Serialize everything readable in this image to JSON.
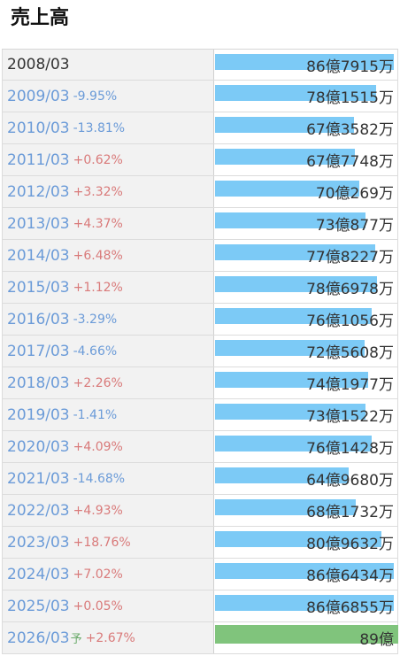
{
  "title": "売上高",
  "colors": {
    "bar_actual": "#7ccaf6",
    "bar_forecast": "#80c47c",
    "change_up": "#d97a7a",
    "change_down": "#6b9bd8"
  },
  "chart_data": {
    "type": "bar",
    "orientation": "horizontal",
    "title": "売上高",
    "categories": [
      "2008/03",
      "2009/03",
      "2010/03",
      "2011/03",
      "2012/03",
      "2013/03",
      "2014/03",
      "2015/03",
      "2016/03",
      "2017/03",
      "2018/03",
      "2019/03",
      "2020/03",
      "2021/03",
      "2022/03",
      "2023/03",
      "2024/03",
      "2025/03",
      "2026/03"
    ],
    "values": [
      8679150000,
      7815150000,
      6735820000,
      6777480000,
      7002690000,
      7308770000,
      7782270000,
      7869780000,
      7610560000,
      7256080000,
      7419770000,
      7315220000,
      7614280000,
      6496800000,
      6817320000,
      8096320000,
      8664340000,
      8668550000,
      8900000000
    ],
    "xlim": [
      0,
      8900000000
    ],
    "rows": [
      {
        "period": "2008/03",
        "predicted": "",
        "change": "",
        "direction": "",
        "value_label": "86億7915万",
        "value": 8679150000,
        "forecast": false
      },
      {
        "period": "2009/03",
        "predicted": "",
        "change": "-9.95%",
        "direction": "down",
        "value_label": "78億1515万",
        "value": 7815150000,
        "forecast": false
      },
      {
        "period": "2010/03",
        "predicted": "",
        "change": "-13.81%",
        "direction": "down",
        "value_label": "67億3582万",
        "value": 6735820000,
        "forecast": false
      },
      {
        "period": "2011/03",
        "predicted": "",
        "change": "+0.62%",
        "direction": "up",
        "value_label": "67億7748万",
        "value": 6777480000,
        "forecast": false
      },
      {
        "period": "2012/03",
        "predicted": "",
        "change": "+3.32%",
        "direction": "up",
        "value_label": "70億269万",
        "value": 7002690000,
        "forecast": false
      },
      {
        "period": "2013/03",
        "predicted": "",
        "change": "+4.37%",
        "direction": "up",
        "value_label": "73億877万",
        "value": 7308770000,
        "forecast": false
      },
      {
        "period": "2014/03",
        "predicted": "",
        "change": "+6.48%",
        "direction": "up",
        "value_label": "77億8227万",
        "value": 7782270000,
        "forecast": false
      },
      {
        "period": "2015/03",
        "predicted": "",
        "change": "+1.12%",
        "direction": "up",
        "value_label": "78億6978万",
        "value": 7869780000,
        "forecast": false
      },
      {
        "period": "2016/03",
        "predicted": "",
        "change": "-3.29%",
        "direction": "down",
        "value_label": "76億1056万",
        "value": 7610560000,
        "forecast": false
      },
      {
        "period": "2017/03",
        "predicted": "",
        "change": "-4.66%",
        "direction": "down",
        "value_label": "72億5608万",
        "value": 7256080000,
        "forecast": false
      },
      {
        "period": "2018/03",
        "predicted": "",
        "change": "+2.26%",
        "direction": "up",
        "value_label": "74億1977万",
        "value": 7419770000,
        "forecast": false
      },
      {
        "period": "2019/03",
        "predicted": "",
        "change": "-1.41%",
        "direction": "down",
        "value_label": "73億1522万",
        "value": 7315220000,
        "forecast": false
      },
      {
        "period": "2020/03",
        "predicted": "",
        "change": "+4.09%",
        "direction": "up",
        "value_label": "76億1428万",
        "value": 7614280000,
        "forecast": false
      },
      {
        "period": "2021/03",
        "predicted": "",
        "change": "-14.68%",
        "direction": "down",
        "value_label": "64億9680万",
        "value": 6496800000,
        "forecast": false
      },
      {
        "period": "2022/03",
        "predicted": "",
        "change": "+4.93%",
        "direction": "up",
        "value_label": "68億1732万",
        "value": 6817320000,
        "forecast": false
      },
      {
        "period": "2023/03",
        "predicted": "",
        "change": "+18.76%",
        "direction": "up",
        "value_label": "80億9632万",
        "value": 8096320000,
        "forecast": false
      },
      {
        "period": "2024/03",
        "predicted": "",
        "change": "+7.02%",
        "direction": "up",
        "value_label": "86億6434万",
        "value": 8664340000,
        "forecast": false
      },
      {
        "period": "2025/03",
        "predicted": "",
        "change": "+0.05%",
        "direction": "up",
        "value_label": "86億6855万",
        "value": 8668550000,
        "forecast": false
      },
      {
        "period": "2026/03",
        "predicted": "予",
        "change": "+2.67%",
        "direction": "up",
        "value_label": "89億",
        "value": 8900000000,
        "forecast": true
      }
    ]
  }
}
